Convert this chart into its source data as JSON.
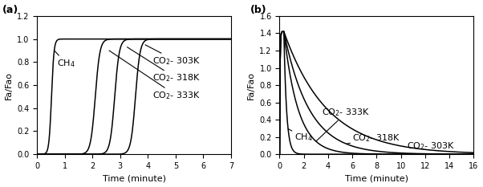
{
  "panel_a": {
    "xlabel": "Time (minute)",
    "ylabel": "Fa/Fao",
    "xlim": [
      0,
      7
    ],
    "ylim": [
      0.0,
      1.2
    ],
    "yticks": [
      0.0,
      0.2,
      0.4,
      0.6,
      0.8,
      1.0,
      1.2
    ],
    "xticks": [
      0,
      1,
      2,
      3,
      4,
      5,
      6,
      7
    ],
    "ch4_mid": 0.52,
    "ch4_steep": 22,
    "co2_333_mid": 2.1,
    "co2_318_mid": 2.8,
    "co2_303_mid": 3.55,
    "co2_steep": 12
  },
  "panel_b": {
    "xlabel": "Time (minute)",
    "ylabel": "Fa/Fao",
    "xlim": [
      0,
      16
    ],
    "ylim": [
      0.0,
      1.6
    ],
    "yticks": [
      0.0,
      0.2,
      0.4,
      0.6,
      0.8,
      1.0,
      1.2,
      1.4,
      1.6
    ],
    "xticks": [
      0,
      2,
      4,
      6,
      8,
      10,
      12,
      14,
      16
    ],
    "peak": 1.42,
    "peak_t": 0.35,
    "ch4_decay": 4.5,
    "co2_333_decay": 0.85,
    "co2_318_decay": 0.48,
    "co2_303_decay": 0.28
  },
  "line_color": "#000000",
  "bg": "#ffffff",
  "fs": 8,
  "lw": 1.1
}
